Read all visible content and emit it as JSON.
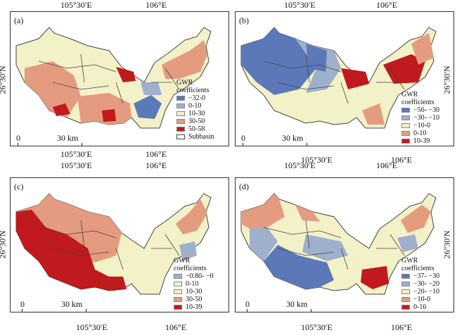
{
  "axis": {
    "lon_labels": [
      "105°30′E",
      "106°E"
    ],
    "lat_label": "26°30′N"
  },
  "legend_title": [
    "GWR",
    "coefficients"
  ],
  "scale_label": [
    "0",
    "30 km"
  ],
  "subbasin_label": "Subbasin",
  "colors": {
    "dark_blue": "#5b79b8",
    "light_blue": "#9fb0cc",
    "pale_yellow": "#f3f1c7",
    "salmon": "#e59b7f",
    "dark_red": "#c0191e",
    "boundary": "#444444"
  },
  "panels": [
    {
      "label": "(a)",
      "legend": [
        {
          "text": "−32-0",
          "color": "#5b79b8"
        },
        {
          "text": "0-10",
          "color": "#9fb0cc"
        },
        {
          "text": "10-30",
          "color": "#f3f1c7"
        },
        {
          "text": "30-50",
          "color": "#e59b7f"
        },
        {
          "text": "50-58",
          "color": "#c0191e"
        }
      ]
    },
    {
      "label": "(b)",
      "legend": [
        {
          "text": "−56- −30",
          "color": "#5b79b8"
        },
        {
          "text": "−30- −10",
          "color": "#9fb0cc"
        },
        {
          "text": "−10-0",
          "color": "#f3f1c7"
        },
        {
          "text": "0-10",
          "color": "#e59b7f"
        },
        {
          "text": "10-39",
          "color": "#c0191e"
        }
      ]
    },
    {
      "label": "(c)",
      "legend": [
        {
          "text": "−0.80- −0",
          "color": "#9fb0cc"
        },
        {
          "text": "0-10",
          "color": "#f3f1c7"
        },
        {
          "text": "10-30",
          "color": "#f3f1c7"
        },
        {
          "text": "30-50",
          "color": "#e59b7f"
        },
        {
          "text": "10-39",
          "color": "#c0191e"
        }
      ]
    },
    {
      "label": "(d)",
      "legend": [
        {
          "text": "−37- −30",
          "color": "#5b79b8"
        },
        {
          "text": "−30- −20",
          "color": "#9fb0cc"
        },
        {
          "text": "−20- −10",
          "color": "#f3f1c7"
        },
        {
          "text": "−10-0",
          "color": "#e59b7f"
        },
        {
          "text": "0-16",
          "color": "#c0191e"
        }
      ]
    }
  ]
}
